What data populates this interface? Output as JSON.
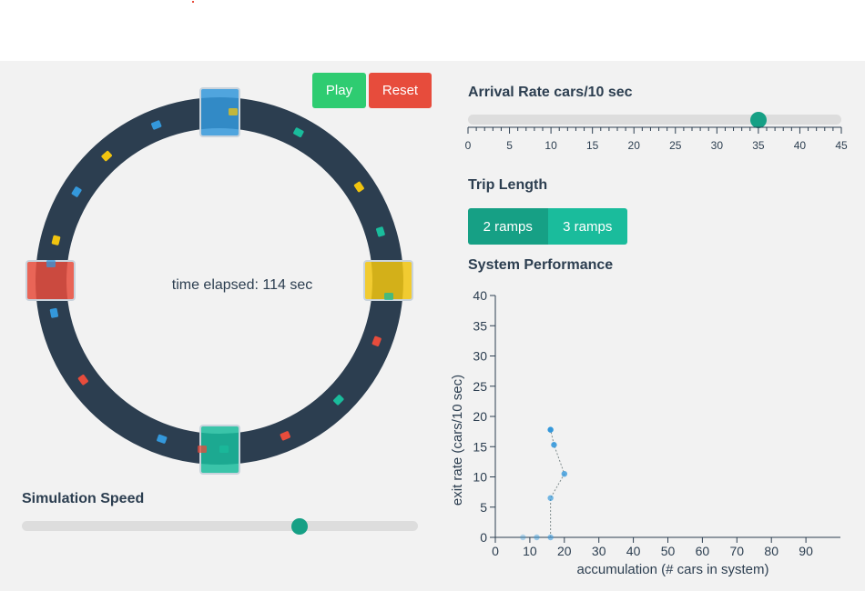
{
  "controls": {
    "play_label": "Play",
    "reset_label": "Reset"
  },
  "ring": {
    "time_label": "time elapsed:",
    "time_value": "114 sec",
    "colors": {
      "road": "#2c3e50",
      "blue": "#3498db",
      "yellow": "#f1c40f",
      "red": "#e74c3c",
      "teal": "#1abc9c"
    }
  },
  "simulation_speed": {
    "label": "Simulation Speed",
    "value_fraction": 0.7
  },
  "arrival_rate": {
    "label": "Arrival Rate cars/10 sec",
    "min": 0,
    "max": 45,
    "value": 35,
    "ticks": [
      "0",
      "5",
      "10",
      "15",
      "20",
      "25",
      "30",
      "35",
      "40",
      "45"
    ]
  },
  "trip_length": {
    "label": "Trip Length",
    "options": [
      "2 ramps",
      "3 ramps"
    ],
    "selected": "2 ramps"
  },
  "system_performance": {
    "label": "System Performance"
  },
  "chart_data": {
    "type": "scatter",
    "xlabel": "accumulation (# cars in system)",
    "ylabel": "exit rate (cars/10 sec)",
    "xlim": [
      0,
      100
    ],
    "ylim": [
      0,
      40
    ],
    "x_ticks": [
      "0",
      "10",
      "20",
      "30",
      "40",
      "50",
      "60",
      "70",
      "80",
      "90"
    ],
    "y_ticks": [
      "0",
      "5",
      "10",
      "15",
      "20",
      "25",
      "30",
      "35",
      "40"
    ],
    "points": [
      {
        "x": 8,
        "y": 0
      },
      {
        "x": 12,
        "y": 0
      },
      {
        "x": 16,
        "y": 0
      },
      {
        "x": 16,
        "y": 6.5
      },
      {
        "x": 20,
        "y": 10.5
      },
      {
        "x": 17,
        "y": 15.3
      },
      {
        "x": 16,
        "y": 17.8
      }
    ],
    "grid": false
  }
}
